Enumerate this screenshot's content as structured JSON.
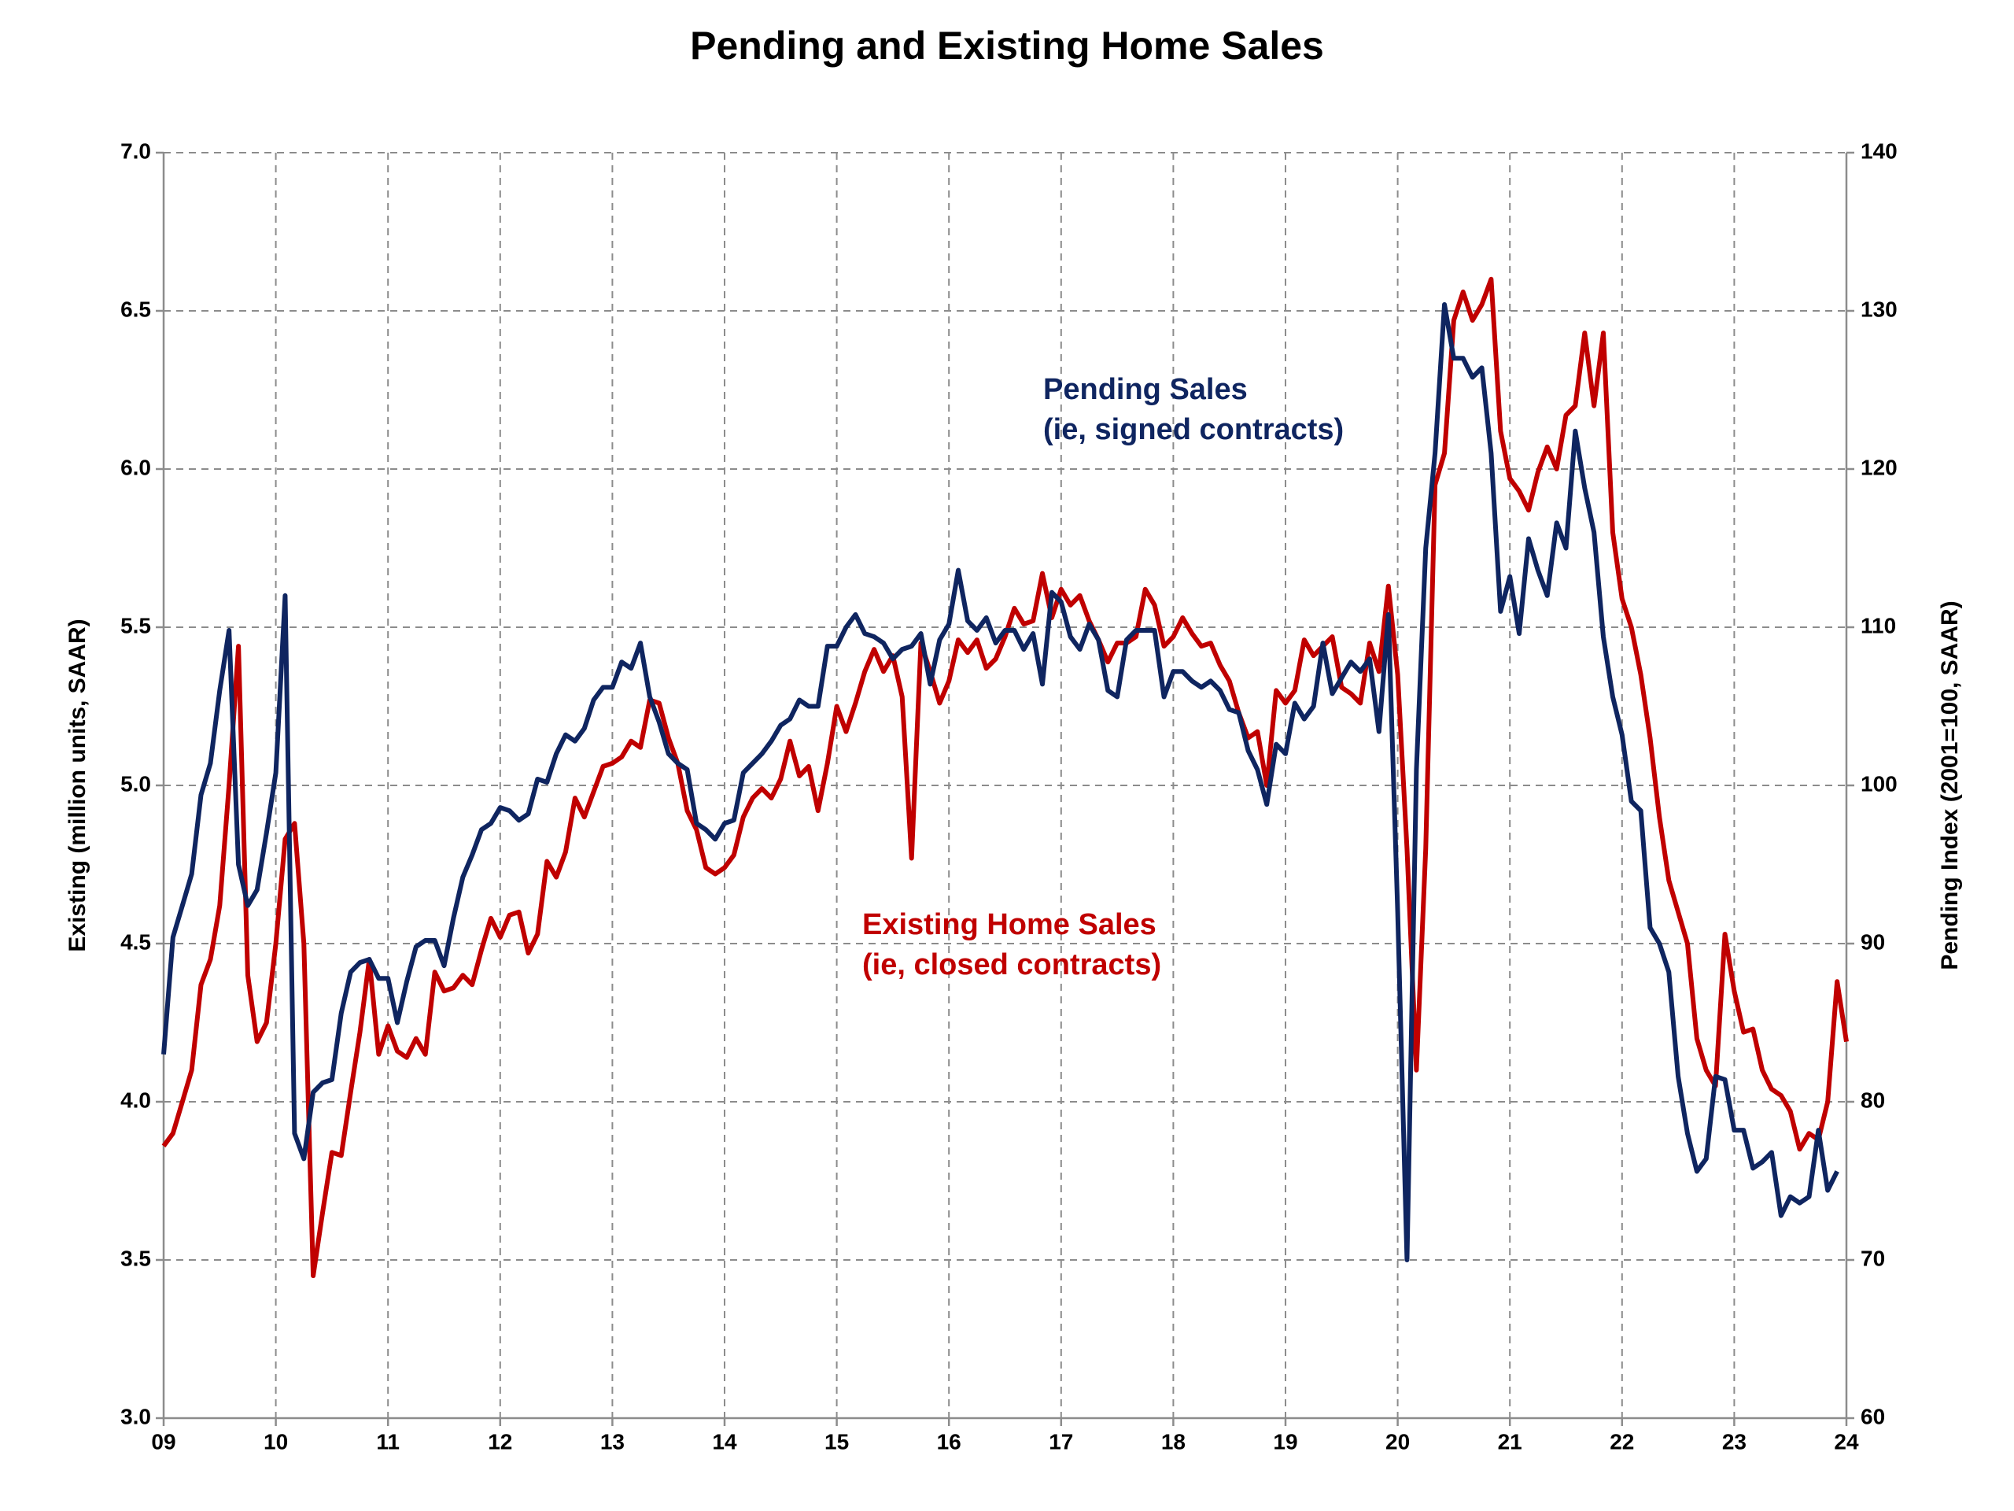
{
  "chart_data": {
    "type": "line",
    "title": "Pending and Existing Home Sales",
    "y_label": "Existing (million units, SAAR)",
    "y2_label": "Pending Index (2001=100, SAAR)",
    "xlim": [
      9,
      24
    ],
    "xticks": [
      {
        "value": 9,
        "label": "09"
      },
      10,
      11,
      12,
      13,
      14,
      15,
      16,
      17,
      18,
      19,
      20,
      21,
      22,
      23,
      24
    ],
    "ylim": [
      3,
      7
    ],
    "yticks": [
      {
        "value": 3,
        "label": "3.0"
      },
      {
        "value": 3.5,
        "label": "3.5"
      },
      {
        "value": 4,
        "label": "4.0"
      },
      {
        "value": 4.5,
        "label": "4.5"
      },
      {
        "value": 5,
        "label": "5.0"
      },
      {
        "value": 5.5,
        "label": "5.5"
      },
      {
        "value": 6,
        "label": "6.0"
      },
      {
        "value": 6.5,
        "label": "6.5"
      },
      {
        "value": 7,
        "label": "7.0"
      }
    ],
    "y2lim": [
      60,
      140
    ],
    "y2ticks": [
      60,
      70,
      80,
      90,
      100,
      110,
      120,
      130,
      140
    ],
    "grid": true,
    "x": [
      9,
      9.083,
      9.167,
      9.25,
      9.333,
      9.417,
      9.5,
      9.583,
      9.667,
      9.75,
      9.833,
      9.917,
      10,
      10.083,
      10.167,
      10.25,
      10.333,
      10.417,
      10.5,
      10.583,
      10.667,
      10.75,
      10.833,
      10.917,
      11,
      11.083,
      11.167,
      11.25,
      11.333,
      11.417,
      11.5,
      11.583,
      11.667,
      11.75,
      11.833,
      11.917,
      12,
      12.083,
      12.167,
      12.25,
      12.333,
      12.417,
      12.5,
      12.583,
      12.667,
      12.75,
      12.833,
      12.917,
      13,
      13.083,
      13.167,
      13.25,
      13.333,
      13.417,
      13.5,
      13.583,
      13.667,
      13.75,
      13.833,
      13.917,
      14,
      14.083,
      14.167,
      14.25,
      14.333,
      14.417,
      14.5,
      14.583,
      14.667,
      14.75,
      14.833,
      14.917,
      15,
      15.083,
      15.167,
      15.25,
      15.333,
      15.417,
      15.5,
      15.583,
      15.667,
      15.75,
      15.833,
      15.917,
      16,
      16.083,
      16.167,
      16.25,
      16.333,
      16.417,
      16.5,
      16.583,
      16.667,
      16.75,
      16.833,
      16.917,
      17,
      17.083,
      17.167,
      17.25,
      17.333,
      17.417,
      17.5,
      17.583,
      17.667,
      17.75,
      17.833,
      17.917,
      18,
      18.083,
      18.167,
      18.25,
      18.333,
      18.417,
      18.5,
      18.583,
      18.667,
      18.75,
      18.833,
      18.917,
      19,
      19.083,
      19.167,
      19.25,
      19.333,
      19.417,
      19.5,
      19.583,
      19.667,
      19.75,
      19.833,
      19.917,
      20,
      20.083,
      20.167,
      20.25,
      20.333,
      20.417,
      20.5,
      20.583,
      20.667,
      20.75,
      20.833,
      20.917,
      21,
      21.083,
      21.167,
      21.25,
      21.333,
      21.417,
      21.5,
      21.583,
      21.667,
      21.75,
      21.833,
      21.917,
      22,
      22.083,
      22.167,
      22.25,
      22.333,
      22.417,
      22.5,
      22.583,
      22.667,
      22.75,
      22.833,
      22.917,
      23,
      23.083,
      23.167,
      23.25,
      23.333,
      23.417,
      23.5,
      23.583,
      23.667,
      23.75,
      23.833,
      23.917,
      24
    ],
    "series": [
      {
        "name": "Existing Home Sales",
        "detail": "(ie, closed contracts)",
        "color": "#c00000",
        "axis": "y",
        "values": [
          3.86,
          3.9,
          4.0,
          4.1,
          4.37,
          4.45,
          4.62,
          5.0,
          5.44,
          4.4,
          4.19,
          4.25,
          4.5,
          4.83,
          4.88,
          4.5,
          3.45,
          3.65,
          3.84,
          3.83,
          4.03,
          4.22,
          4.45,
          4.15,
          4.24,
          4.16,
          4.14,
          4.2,
          4.15,
          4.41,
          4.35,
          4.36,
          4.4,
          4.37,
          4.48,
          4.58,
          4.52,
          4.59,
          4.6,
          4.47,
          4.53,
          4.76,
          4.71,
          4.79,
          4.96,
          4.9,
          4.98,
          5.06,
          5.07,
          5.09,
          5.14,
          5.12,
          5.27,
          5.26,
          5.15,
          5.07,
          4.92,
          4.86,
          4.74,
          4.72,
          4.74,
          4.78,
          4.9,
          4.96,
          4.99,
          4.96,
          5.02,
          5.14,
          5.03,
          5.06,
          4.92,
          5.07,
          5.25,
          5.17,
          5.26,
          5.36,
          5.43,
          5.36,
          5.41,
          5.28,
          4.77,
          5.45,
          5.36,
          5.26,
          5.33,
          5.46,
          5.42,
          5.46,
          5.37,
          5.4,
          5.47,
          5.56,
          5.51,
          5.52,
          5.67,
          5.53,
          5.62,
          5.57,
          5.6,
          5.52,
          5.46,
          5.39,
          5.45,
          5.45,
          5.47,
          5.62,
          5.57,
          5.44,
          5.47,
          5.53,
          5.48,
          5.44,
          5.45,
          5.38,
          5.33,
          5.23,
          5.15,
          5.17,
          5.0,
          5.3,
          5.26,
          5.3,
          5.46,
          5.41,
          5.44,
          5.47,
          5.31,
          5.29,
          5.26,
          5.45,
          5.36,
          5.63,
          5.35,
          4.8,
          4.1,
          4.8,
          5.95,
          6.05,
          6.47,
          6.56,
          6.47,
          6.52,
          6.6,
          6.12,
          5.97,
          5.93,
          5.87,
          5.99,
          6.07,
          6.0,
          6.17,
          6.2,
          6.43,
          6.2,
          6.43,
          5.8,
          5.59,
          5.5,
          5.35,
          5.15,
          4.9,
          4.7,
          4.6,
          4.5,
          4.2,
          4.1,
          4.05,
          4.53,
          4.35,
          4.22,
          4.23,
          4.1,
          4.04,
          4.02,
          3.97,
          3.85,
          3.9,
          3.88,
          4.0,
          4.38,
          4.19
        ]
      },
      {
        "name": "Pending Sales",
        "detail": "(ie, signed contracts)",
        "color": "#0f2560",
        "axis": "y2",
        "values": [
          83,
          90.4,
          92.4,
          94.4,
          99.4,
          101.4,
          106,
          109.8,
          95,
          92.4,
          93.4,
          97,
          100.8,
          112,
          78,
          76.4,
          80.6,
          81.2,
          81.4,
          85.6,
          88.2,
          88.8,
          89,
          87.8,
          87.8,
          85,
          87.6,
          89.8,
          90.2,
          90.2,
          88.6,
          91.6,
          94.2,
          95.6,
          97.2,
          97.6,
          98.6,
          98.4,
          97.8,
          98.2,
          100.4,
          100.2,
          102,
          103.2,
          102.8,
          103.6,
          105.4,
          106.2,
          106.2,
          107.8,
          107.4,
          109,
          105.6,
          104,
          102,
          101.4,
          101,
          97.6,
          97.2,
          96.6,
          97.6,
          97.8,
          100.8,
          101.4,
          102,
          102.8,
          103.8,
          104.2,
          105.4,
          105,
          105,
          108.8,
          108.8,
          110,
          110.8,
          109.6,
          109.4,
          109,
          108,
          108.6,
          108.8,
          109.6,
          106.4,
          109.2,
          110.2,
          113.6,
          110.4,
          109.8,
          110.6,
          109,
          109.8,
          109.8,
          108.6,
          109.6,
          106.4,
          112.2,
          111.6,
          109.4,
          108.6,
          110.2,
          109.2,
          106,
          105.6,
          109.2,
          109.8,
          109.8,
          109.8,
          105.6,
          107.2,
          107.2,
          106.6,
          106.2,
          106.6,
          106,
          104.8,
          104.6,
          102.2,
          101,
          98.8,
          102.6,
          102,
          105.2,
          104.2,
          105,
          109,
          105.8,
          106.8,
          107.8,
          107.2,
          108,
          103.4,
          110.8,
          92,
          70,
          101,
          115,
          121,
          130.4,
          127,
          127,
          125.8,
          126.4,
          121,
          111,
          113.2,
          109.6,
          115.6,
          113.6,
          112,
          116.6,
          115,
          122.4,
          118.8,
          116,
          109.4,
          105.6,
          103.2,
          99,
          98.4,
          91,
          90,
          88.2,
          81.6,
          78,
          75.6,
          76.4,
          81.6,
          81.4,
          78.2,
          78.2,
          75.8,
          76.2,
          76.8,
          72.8,
          74,
          73.6,
          74,
          78.2,
          74.4,
          75.6,
          null
        ]
      }
    ]
  }
}
